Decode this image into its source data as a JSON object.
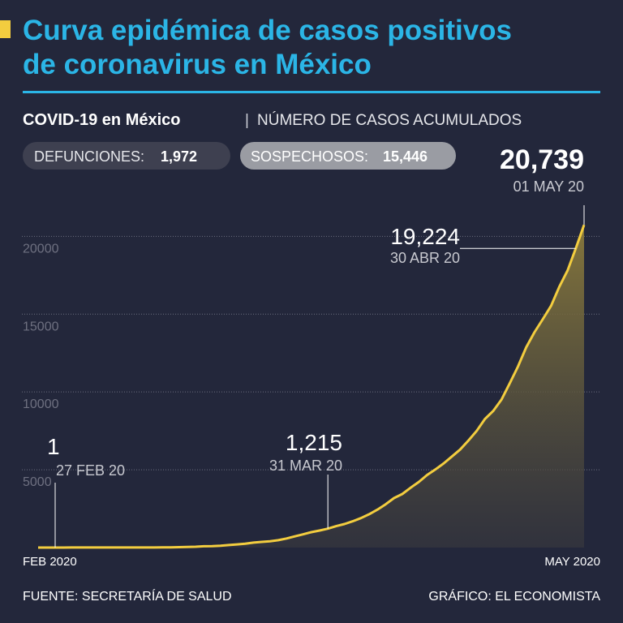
{
  "chart_data": {
    "type": "area",
    "title": [
      "Curva epidémica de casos positivos",
      "de coronavirus en México"
    ],
    "subtitle": "COVID-19 en México",
    "subtitle_detail": "NÚMERO DE CASOS ACUMULADOS",
    "stats": [
      {
        "label": "DEFUNCIONES:",
        "value": "1,972"
      },
      {
        "label": "SOSPECHOSOS:",
        "value": "15,446"
      }
    ],
    "x_axis_labels": [
      "FEB 2020",
      "MAY 2020"
    ],
    "categories": [
      "27 FEB 20",
      null,
      null,
      null,
      null,
      null,
      null,
      null,
      null,
      null,
      null,
      null,
      null,
      null,
      null,
      null,
      null,
      null,
      null,
      null,
      null,
      null,
      null,
      null,
      null,
      null,
      null,
      null,
      null,
      null,
      null,
      null,
      null,
      "31 MAR 20",
      null,
      null,
      null,
      null,
      null,
      null,
      null,
      null,
      null,
      null,
      null,
      null,
      null,
      null,
      null,
      null,
      null,
      null,
      null,
      null,
      null,
      null,
      null,
      null,
      null,
      null,
      null,
      null,
      null,
      "30 ABR 20",
      "01 MAY 20"
    ],
    "values": [
      1,
      1,
      4,
      5,
      5,
      5,
      5,
      5,
      6,
      7,
      7,
      7,
      7,
      8,
      12,
      26,
      41,
      53,
      82,
      93,
      118,
      164,
      203,
      251,
      316,
      367,
      405,
      475,
      585,
      717,
      848,
      993,
      1094,
      1215,
      1378,
      1510,
      1688,
      1890,
      2143,
      2439,
      2785,
      3181,
      3441,
      3844,
      4219,
      4661,
      5014,
      5399,
      5847,
      6297,
      6875,
      7497,
      8261,
      8772,
      9501,
      10544,
      11633,
      12872,
      13842,
      14677,
      15529,
      16752,
      17799,
      19224,
      20739
    ],
    "value_labels": [
      "1",
      null,
      null,
      null,
      null,
      null,
      null,
      null,
      null,
      null,
      null,
      null,
      null,
      null,
      null,
      null,
      null,
      null,
      null,
      null,
      null,
      null,
      null,
      null,
      null,
      null,
      null,
      null,
      null,
      null,
      null,
      null,
      null,
      "1,215",
      null,
      null,
      null,
      null,
      null,
      null,
      null,
      null,
      null,
      null,
      null,
      null,
      null,
      null,
      null,
      null,
      null,
      null,
      null,
      null,
      null,
      null,
      null,
      null,
      null,
      null,
      null,
      null,
      null,
      "19,224",
      "20,739"
    ],
    "color": "#f3cd3f",
    "ylim": [
      0,
      22000
    ],
    "yticks": [
      5000,
      10000,
      15000,
      20000
    ],
    "grid": true,
    "source": "FUENTE: SECRETARÍA DE SALUD",
    "credit": "GRÁFICO: EL ECONOMISTA"
  }
}
